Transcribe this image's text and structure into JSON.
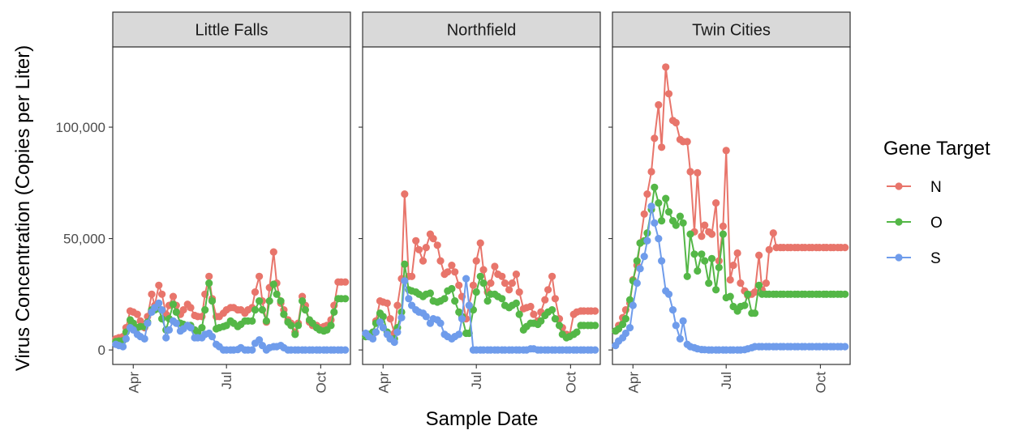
{
  "chart_data": {
    "type": "line",
    "facets": [
      "Little Falls",
      "Northfield",
      "Twin Cities"
    ],
    "xlabel": "Sample Date",
    "ylabel": "Virus Concentration (Copies per Liter)",
    "x_ticks": [
      {
        "label": "Apr",
        "date": "2021-04-01"
      },
      {
        "label": "Jul",
        "date": "2021-07-01"
      },
      {
        "label": "Oct",
        "date": "2021-10-01"
      }
    ],
    "y_ticks": [
      {
        "label": "0",
        "value": 0
      },
      {
        "label": "50,000",
        "value": 50000
      },
      {
        "label": "100,000",
        "value": 100000
      }
    ],
    "xlim": [
      "2021-03-12",
      "2021-10-30"
    ],
    "ylim": [
      -6500,
      136000
    ],
    "grid": false,
    "legend": {
      "title": "Gene Target",
      "position": "right",
      "entries": [
        {
          "label": "N",
          "color": "#e8756b"
        },
        {
          "label": "O",
          "color": "#54b747"
        },
        {
          "label": "S",
          "color": "#6f9ceb"
        }
      ]
    },
    "dates": {
      "Little Falls": [
        "2021-03-15",
        "2021-03-18",
        "2021-03-22",
        "2021-03-25",
        "2021-03-29",
        "2021-04-01",
        "2021-04-05",
        "2021-04-08",
        "2021-04-12",
        "2021-04-15",
        "2021-04-19",
        "2021-04-22",
        "2021-04-26",
        "2021-04-29",
        "2021-05-03",
        "2021-05-06",
        "2021-05-10",
        "2021-05-13",
        "2021-05-17",
        "2021-05-20",
        "2021-05-24",
        "2021-05-27",
        "2021-05-31",
        "2021-06-03",
        "2021-06-07",
        "2021-06-10",
        "2021-06-14",
        "2021-06-17",
        "2021-06-21",
        "2021-06-24",
        "2021-06-28",
        "2021-07-01",
        "2021-07-05",
        "2021-07-08",
        "2021-07-12",
        "2021-07-15",
        "2021-07-19",
        "2021-07-22",
        "2021-07-26",
        "2021-07-29",
        "2021-08-02",
        "2021-08-05",
        "2021-08-09",
        "2021-08-12",
        "2021-08-16",
        "2021-08-19",
        "2021-08-23",
        "2021-08-26",
        "2021-08-30",
        "2021-09-02",
        "2021-09-06",
        "2021-09-09",
        "2021-09-13",
        "2021-09-16",
        "2021-09-20",
        "2021-09-23",
        "2021-09-27",
        "2021-09-30",
        "2021-10-04",
        "2021-10-07",
        "2021-10-11",
        "2021-10-14",
        "2021-10-18",
        "2021-10-21",
        "2021-10-25"
      ],
      "Northfield": [
        "2021-03-15",
        "2021-03-18",
        "2021-03-22",
        "2021-03-25",
        "2021-03-29",
        "2021-04-01",
        "2021-04-05",
        "2021-04-08",
        "2021-04-12",
        "2021-04-15",
        "2021-04-19",
        "2021-04-22",
        "2021-04-26",
        "2021-04-29",
        "2021-05-03",
        "2021-05-06",
        "2021-05-10",
        "2021-05-13",
        "2021-05-17",
        "2021-05-20",
        "2021-05-24",
        "2021-05-27",
        "2021-05-31",
        "2021-06-03",
        "2021-06-07",
        "2021-06-10",
        "2021-06-14",
        "2021-06-17",
        "2021-06-21",
        "2021-06-24",
        "2021-06-28",
        "2021-07-01",
        "2021-07-05",
        "2021-07-08",
        "2021-07-12",
        "2021-07-15",
        "2021-07-19",
        "2021-07-22",
        "2021-07-26",
        "2021-07-29",
        "2021-08-02",
        "2021-08-05",
        "2021-08-09",
        "2021-08-12",
        "2021-08-16",
        "2021-08-19",
        "2021-08-23",
        "2021-08-26",
        "2021-08-30",
        "2021-09-02",
        "2021-09-06",
        "2021-09-09",
        "2021-09-13",
        "2021-09-16",
        "2021-09-20",
        "2021-09-23",
        "2021-09-27",
        "2021-09-30",
        "2021-10-04",
        "2021-10-07",
        "2021-10-11",
        "2021-10-14",
        "2021-10-18",
        "2021-10-21",
        "2021-10-25"
      ],
      "Twin Cities": [
        "2021-03-15",
        "2021-03-18",
        "2021-03-22",
        "2021-03-25",
        "2021-03-29",
        "2021-04-01",
        "2021-04-05",
        "2021-04-08",
        "2021-04-12",
        "2021-04-15",
        "2021-04-19",
        "2021-04-22",
        "2021-04-26",
        "2021-04-29",
        "2021-05-03",
        "2021-05-06",
        "2021-05-10",
        "2021-05-13",
        "2021-05-17",
        "2021-05-20",
        "2021-05-24",
        "2021-05-27",
        "2021-05-31",
        "2021-06-03",
        "2021-06-07",
        "2021-06-10",
        "2021-06-14",
        "2021-06-17",
        "2021-06-21",
        "2021-06-24",
        "2021-06-28",
        "2021-07-01",
        "2021-07-05",
        "2021-07-08",
        "2021-07-12",
        "2021-07-15",
        "2021-07-19",
        "2021-07-22",
        "2021-07-26",
        "2021-07-29",
        "2021-08-02",
        "2021-08-05",
        "2021-08-09",
        "2021-08-12",
        "2021-08-16",
        "2021-08-19",
        "2021-08-23",
        "2021-08-26",
        "2021-08-30",
        "2021-09-02",
        "2021-09-06",
        "2021-09-09",
        "2021-09-13",
        "2021-09-16",
        "2021-09-20",
        "2021-09-23",
        "2021-09-27",
        "2021-09-30",
        "2021-10-04",
        "2021-10-07",
        "2021-10-11",
        "2021-10-14",
        "2021-10-18",
        "2021-10-21",
        "2021-10-25"
      ]
    },
    "series": {
      "Little Falls": [
        {
          "name": "N",
          "values": [
            5000,
            5500,
            6000,
            10000,
            17500,
            17000,
            16000,
            13000,
            10000,
            15000,
            25000,
            20000,
            29000,
            25000,
            16000,
            20000,
            24000,
            20000,
            16000,
            18000,
            20500,
            19000,
            15500,
            15000,
            15000,
            25000,
            33000,
            23000,
            15000,
            15000,
            16500,
            18000,
            19000,
            19000,
            18000,
            18000,
            16500,
            18000,
            19000,
            26000,
            33000,
            22000,
            12500,
            28000,
            44000,
            30000,
            21000,
            18000,
            13500,
            12000,
            8000,
            12000,
            24000,
            20000,
            12500,
            11000,
            11000,
            10000,
            10500,
            11000,
            13500,
            20000,
            30500,
            30500,
            30500
          ]
        },
        {
          "name": "O",
          "values": [
            3800,
            4000,
            4200,
            8000,
            13500,
            12000,
            10000,
            10500,
            10500,
            12500,
            18000,
            18000,
            18500,
            14000,
            9000,
            14000,
            20500,
            17000,
            12000,
            11500,
            11000,
            11000,
            9000,
            8000,
            10000,
            18000,
            30000,
            22000,
            9500,
            10000,
            10500,
            11000,
            13000,
            12000,
            10500,
            11500,
            13000,
            13000,
            13000,
            18000,
            22000,
            18000,
            13000,
            22000,
            29500,
            25000,
            22000,
            16000,
            12500,
            11000,
            7000,
            11000,
            22000,
            18000,
            13500,
            12000,
            10000,
            9000,
            8500,
            9000,
            11000,
            17000,
            23000,
            23000,
            23000
          ]
        },
        {
          "name": "S",
          "values": [
            2500,
            2000,
            1500,
            5000,
            10000,
            9000,
            7000,
            6000,
            5000,
            12000,
            17000,
            19000,
            21000,
            18000,
            5500,
            9000,
            13000,
            12000,
            8500,
            9500,
            11000,
            10000,
            5500,
            5500,
            5500,
            7000,
            7500,
            6000,
            2500,
            1500,
            0,
            0,
            0,
            0,
            200,
            1000,
            0,
            0,
            0,
            3000,
            4500,
            2000,
            0,
            1000,
            1500,
            1500,
            2000,
            1000,
            0,
            0,
            0,
            0,
            0,
            0,
            0,
            0,
            0,
            0,
            0,
            0,
            0,
            0,
            0,
            0,
            0
          ]
        }
      ],
      "Northfield": [
        {
          "name": "N",
          "values": [
            6500,
            6800,
            7000,
            13000,
            22000,
            21500,
            21000,
            14000,
            7500,
            20000,
            32000,
            70000,
            33000,
            33000,
            49000,
            45000,
            40000,
            46000,
            52000,
            50000,
            47000,
            40000,
            34000,
            35000,
            38000,
            35000,
            29000,
            24000,
            14000,
            20000,
            29000,
            40000,
            48000,
            36000,
            26000,
            30000,
            37500,
            34000,
            33000,
            30000,
            27000,
            30000,
            34000,
            26000,
            18500,
            19000,
            19500,
            16000,
            13000,
            17000,
            22500,
            27000,
            33000,
            23000,
            14000,
            10000,
            7000,
            6500,
            16000,
            17000,
            17500,
            17500,
            17500,
            17500,
            17500
          ]
        },
        {
          "name": "O",
          "values": [
            6000,
            7000,
            8000,
            12000,
            16500,
            15000,
            8000,
            5000,
            5000,
            10000,
            17000,
            38500,
            27000,
            26500,
            26000,
            25000,
            24000,
            25000,
            25500,
            22000,
            21500,
            22000,
            23000,
            26500,
            27500,
            22000,
            17000,
            15000,
            7500,
            7500,
            18000,
            26000,
            33000,
            30000,
            22000,
            25000,
            25000,
            24000,
            23000,
            20000,
            19000,
            20000,
            21000,
            16000,
            9000,
            10500,
            12000,
            12000,
            11500,
            13000,
            15500,
            17000,
            18000,
            14000,
            11000,
            7000,
            5500,
            6000,
            7000,
            8000,
            11000,
            11000,
            11000,
            11000,
            11000
          ]
        },
        {
          "name": "S",
          "values": [
            7500,
            6000,
            5000,
            8000,
            12500,
            10000,
            7000,
            5000,
            3500,
            8000,
            14500,
            31000,
            23000,
            20000,
            18000,
            17000,
            16500,
            15000,
            12000,
            14000,
            13500,
            12000,
            7000,
            6000,
            5000,
            6000,
            7000,
            14000,
            32000,
            20000,
            0,
            0,
            0,
            0,
            0,
            0,
            0,
            0,
            0,
            0,
            0,
            0,
            0,
            0,
            0,
            0,
            500,
            500,
            0,
            0,
            0,
            0,
            0,
            0,
            0,
            0,
            0,
            0,
            0,
            0,
            0,
            0,
            0,
            0,
            0
          ]
        }
      ],
      "Twin Cities": [
        {
          "name": "N",
          "values": [
            8500,
            11000,
            14500,
            18000,
            21000,
            31500,
            38000,
            48000,
            61000,
            70000,
            80000,
            95000,
            110000,
            91000,
            127000,
            115000,
            103000,
            102000,
            94500,
            93500,
            93500,
            80000,
            53000,
            79500,
            51000,
            56000,
            53000,
            52000,
            66000,
            40000,
            55500,
            89500,
            31500,
            38000,
            43500,
            30000,
            26500,
            24500,
            25000,
            26000,
            42500,
            27000,
            30000,
            45000,
            52500,
            46000,
            46000,
            46000,
            46000,
            46000,
            46000,
            46000,
            46000,
            46000,
            46000,
            46000,
            46000,
            46000,
            46000,
            46000,
            46000,
            46000,
            46000,
            46000,
            46000
          ]
        },
        {
          "name": "O",
          "values": [
            8500,
            9500,
            11500,
            14000,
            22500,
            31000,
            40000,
            48000,
            49000,
            52500,
            63000,
            73000,
            66000,
            58000,
            68000,
            62000,
            58000,
            56000,
            60000,
            57000,
            33000,
            52000,
            43000,
            35500,
            43000,
            40000,
            30000,
            41000,
            27000,
            37000,
            52000,
            23500,
            24000,
            19500,
            17500,
            19500,
            20000,
            25000,
            16500,
            16500,
            29000,
            25000,
            25000,
            25000,
            25000,
            25000,
            25000,
            25000,
            25000,
            25000,
            25000,
            25000,
            25000,
            25000,
            25000,
            25000,
            25000,
            25000,
            25000,
            25000,
            25000,
            25000,
            25000,
            25000,
            25000
          ]
        },
        {
          "name": "S",
          "values": [
            2000,
            4000,
            5500,
            7500,
            10000,
            20000,
            30000,
            36500,
            42000,
            49000,
            64500,
            57000,
            50000,
            40000,
            26500,
            25000,
            18000,
            11000,
            5000,
            13000,
            2500,
            1500,
            1000,
            500,
            200,
            100,
            0,
            0,
            0,
            0,
            0,
            0,
            0,
            0,
            0,
            0,
            100,
            500,
            1000,
            1500,
            1500,
            1500,
            1500,
            1500,
            1500,
            1500,
            1500,
            1500,
            1500,
            1500,
            1500,
            1500,
            1500,
            1500,
            1500,
            1500,
            1500,
            1500,
            1500,
            1500,
            1500,
            1500,
            1500,
            1500,
            1500
          ]
        }
      ]
    }
  }
}
